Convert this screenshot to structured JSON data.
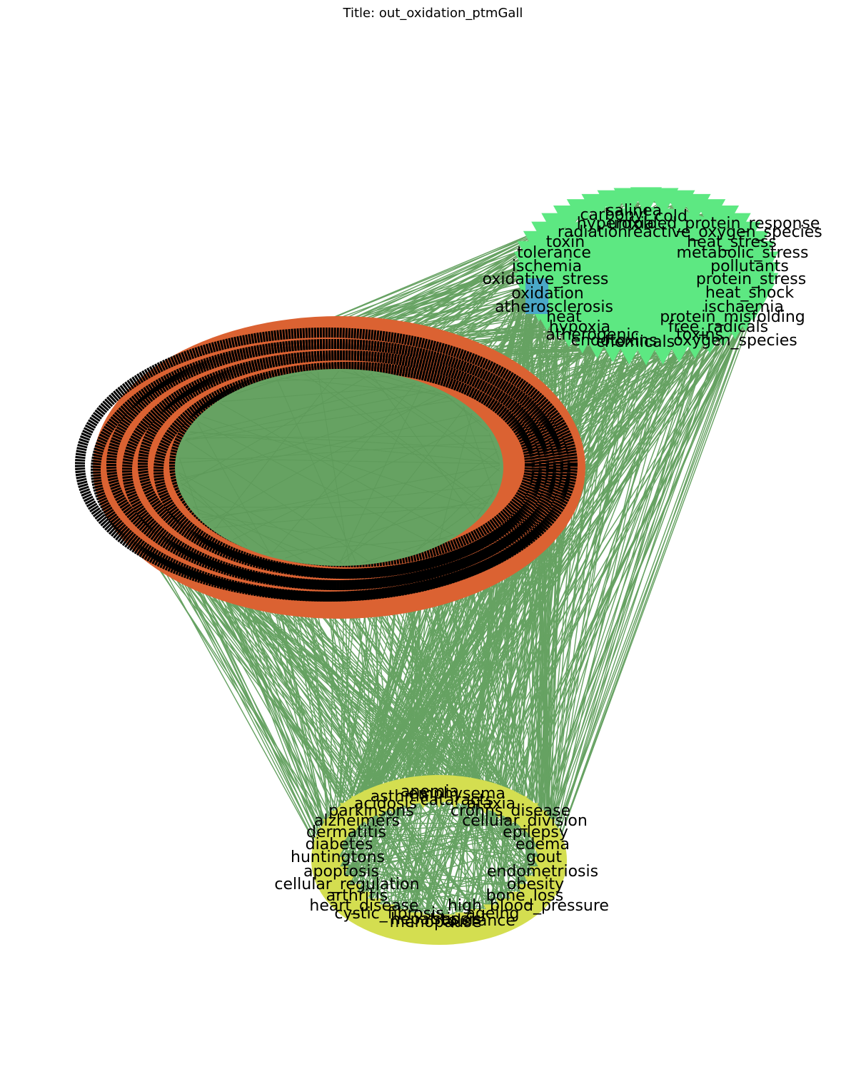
{
  "title": "Title: out_oxidation_ptmGall",
  "colors": {
    "edge": "#66a262",
    "stressor": "#5de882",
    "disease": "#d4de50",
    "hub": "#db6232",
    "center": "#4aa8c8",
    "ring_label": "#000000"
  },
  "clusters": {
    "center": {
      "label": "oxidation"
    },
    "stressors": [
      "carbonyl",
      "salinea",
      "cold",
      "hyperoxia",
      "unfolded_protein_response",
      "radiation",
      "reactive_oxygen_species",
      "toxin",
      "heat_stress",
      "tolerance",
      "metabolic_stress",
      "ischemia",
      "pollutants",
      "oxidative_stress",
      "protein_stress",
      "heat_shock",
      "atherosclerosis",
      "ischaemia",
      "heat",
      "protein_misfolding",
      "hypoxia",
      "free_radicals",
      "atherogenic",
      "toxins",
      "endotoxins",
      "oxygen_species",
      "chemicals"
    ],
    "diseases": [
      "emphysema",
      "anemia",
      "asthma",
      "cataracts",
      "acidosis",
      "ataxia",
      "parkinsons",
      "crohns_disease",
      "alzheimers",
      "cellular_division",
      "dermatitis",
      "epilepsy",
      "diabetes",
      "edema",
      "huntingtons",
      "gout",
      "apoptosis",
      "endometriosis",
      "cellular_regulation",
      "obesity",
      "arthritis",
      "bone_loss",
      "heart_disease",
      "high_blood_pressure",
      "cystic_fibrosis",
      "ageing",
      "hepatitis",
      "sepsis",
      "menopause",
      "tolerance"
    ]
  }
}
